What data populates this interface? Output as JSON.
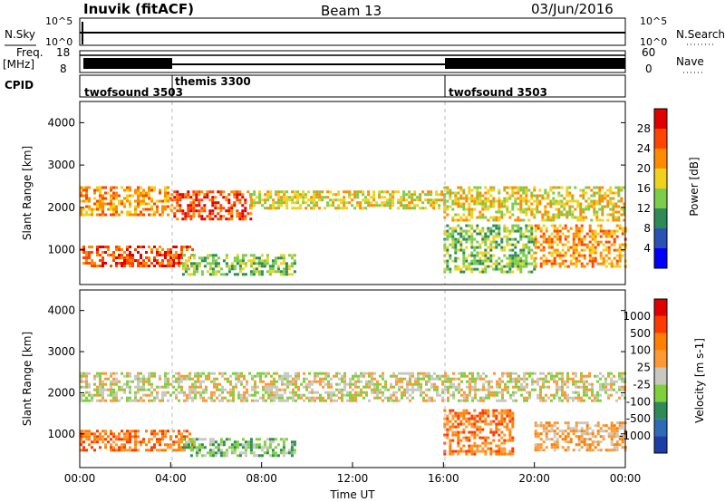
{
  "header": {
    "radar": "Inuvik (fitACF)",
    "beam": "Beam 13",
    "date": "03/Jun/2016"
  },
  "summary_panels": {
    "nsky_label": "N.Sky",
    "nsky_ticks": [
      "10^5",
      "10^0"
    ],
    "nsearch_label": "N.Search",
    "nsearch_ticks": [
      "10^5",
      "10^0"
    ],
    "freq_label_1": "Freq.",
    "freq_label_2": "[MHz]",
    "freq_ticks": [
      "18",
      "8"
    ],
    "nave_label": "Nave",
    "nave_ticks": [
      "60",
      "0"
    ],
    "cpid_label": "CPID",
    "cpid_segments": [
      {
        "name": "twofsound 3503",
        "start_h": 0,
        "end_h": 4
      },
      {
        "name": "themis 3300",
        "start_h": 4,
        "end_h": 16
      },
      {
        "name": "twofsound 3503",
        "start_h": 16,
        "end_h": 24
      }
    ]
  },
  "chart_data": [
    {
      "type": "heatmap",
      "title": "",
      "quantity": "Power",
      "ylabel": "Slant Range [km]",
      "xlabel": "",
      "xlim_hours": [
        0,
        24
      ],
      "ylim_km": [
        180,
        4500
      ],
      "yticks": [
        "1000",
        "2000",
        "3000",
        "4000"
      ],
      "colorbar_label": "Power [dB]",
      "colorbar_ticks": [
        "4",
        "8",
        "12",
        "16",
        "20",
        "24",
        "28"
      ],
      "colorbar_colors": [
        "#0000ff",
        "#2a52b4",
        "#2e8b57",
        "#7ccd4a",
        "#f0d21e",
        "#ff8c00",
        "#ff4500",
        "#e00000"
      ],
      "echo_regions": [
        {
          "t0": 0.0,
          "t1": 4.0,
          "r0": 1800,
          "r1": 2500,
          "level": 5
        },
        {
          "t0": 4.0,
          "t1": 7.5,
          "r0": 1750,
          "r1": 2400,
          "level": 6
        },
        {
          "t0": 7.5,
          "t1": 16.0,
          "r0": 2000,
          "r1": 2400,
          "level": 4
        },
        {
          "t0": 16.0,
          "t1": 24.0,
          "r0": 1700,
          "r1": 2500,
          "level": 4
        },
        {
          "t0": 0.0,
          "t1": 5.0,
          "r0": 600,
          "r1": 1100,
          "level": 6
        },
        {
          "t0": 4.5,
          "t1": 9.5,
          "r0": 450,
          "r1": 900,
          "level": 3
        },
        {
          "t0": 16.0,
          "t1": 20.0,
          "r0": 500,
          "r1": 1600,
          "level": 3
        },
        {
          "t0": 20.0,
          "t1": 24.0,
          "r0": 600,
          "r1": 1600,
          "level": 5
        }
      ]
    },
    {
      "type": "heatmap",
      "title": "",
      "quantity": "Velocity",
      "ylabel": "Slant Range [km]",
      "xlabel": "Time UT",
      "xlim_hours": [
        0,
        24
      ],
      "ylim_km": [
        180,
        4500
      ],
      "xticks": [
        "00:00",
        "04:00",
        "08:00",
        "12:00",
        "16:00",
        "20:00",
        "00:00"
      ],
      "yticks": [
        "1000",
        "2000",
        "3000",
        "4000"
      ],
      "colorbar_label": "Velocity [m s-1]",
      "colorbar_ticks": [
        "1000",
        "500",
        "100",
        "25",
        "-25",
        "-100",
        "-500",
        "-1000"
      ],
      "colorbar_colors": [
        "#1d3ea6",
        "#2e6ab5",
        "#2e8b57",
        "#7fd13b",
        "#c8c8c0",
        "#ff9933",
        "#ff7f00",
        "#ff3a00",
        "#e00000"
      ],
      "echo_regions": [
        {
          "t0": 0.0,
          "t1": 24.0,
          "r0": 1800,
          "r1": 2500,
          "level": 4
        },
        {
          "t0": 0.0,
          "t1": 5.0,
          "r0": 600,
          "r1": 1100,
          "level": 6
        },
        {
          "t0": 4.5,
          "t1": 9.5,
          "r0": 450,
          "r1": 900,
          "level": 3
        },
        {
          "t0": 16.0,
          "t1": 19.0,
          "r0": 500,
          "r1": 1600,
          "level": 6
        },
        {
          "t0": 20.0,
          "t1": 24.0,
          "r0": 600,
          "r1": 1300,
          "level": 5
        }
      ]
    }
  ]
}
